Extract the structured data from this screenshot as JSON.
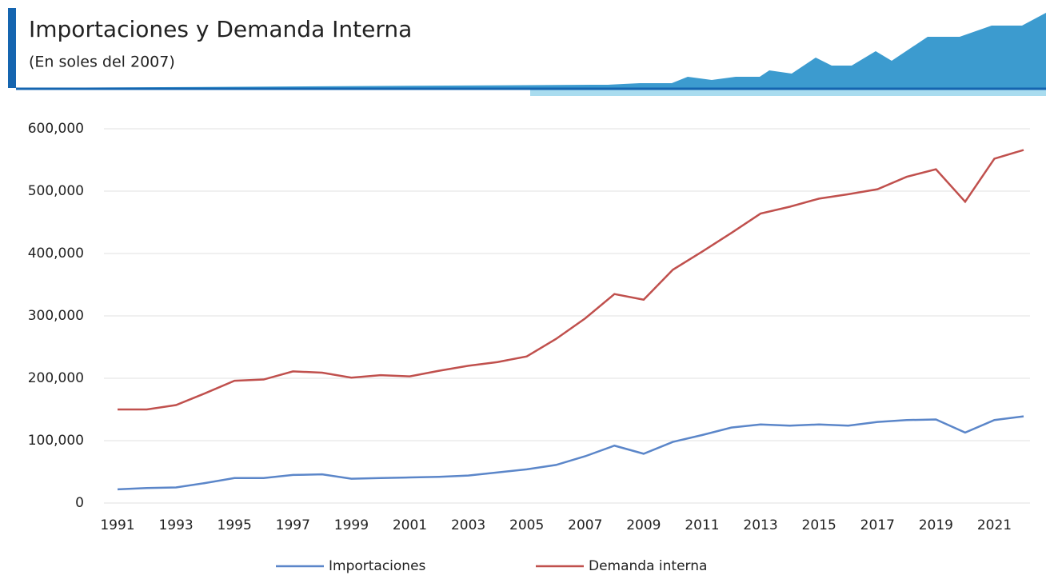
{
  "chart_data": {
    "type": "line",
    "title": "Importaciones y Demanda Interna",
    "subtitle": "(En soles del 2007)",
    "x": [
      1991,
      1992,
      1993,
      1994,
      1995,
      1996,
      1997,
      1998,
      1999,
      2000,
      2001,
      2002,
      2003,
      2004,
      2005,
      2006,
      2007,
      2008,
      2009,
      2010,
      2011,
      2012,
      2013,
      2014,
      2015,
      2016,
      2017,
      2018,
      2019,
      2020,
      2021,
      2022
    ],
    "xlim": [
      1991,
      2022
    ],
    "xticks": [
      1991,
      1993,
      1995,
      1997,
      1999,
      2001,
      2003,
      2005,
      2007,
      2009,
      2011,
      2013,
      2015,
      2017,
      2019,
      2021
    ],
    "ylim": [
      0,
      600000
    ],
    "yticks": [
      0,
      {
        "value": 100000,
        "label": "100,000"
      },
      {
        "value": 200000,
        "label": "200,000"
      },
      {
        "value": 300000,
        "label": "300,000"
      },
      {
        "value": 400000,
        "label": "400,000"
      },
      {
        "value": 500000,
        "label": "500,000"
      },
      {
        "value": 600000,
        "label": "600,000"
      }
    ],
    "grid": true,
    "legend": "bottom",
    "series": [
      {
        "name": "Importaciones",
        "color": "#5b86c9",
        "values": [
          22000,
          24000,
          25000,
          32000,
          40000,
          40000,
          45000,
          46000,
          39000,
          40000,
          41000,
          42000,
          44000,
          49000,
          54000,
          61000,
          75000,
          92000,
          79000,
          98000,
          109000,
          121000,
          126000,
          124000,
          126000,
          124000,
          130000,
          133000,
          134000,
          113000,
          133000,
          139000
        ]
      },
      {
        "name": "Demanda interna",
        "color": "#c0504d",
        "values": [
          150000,
          150000,
          157000,
          176000,
          196000,
          198000,
          211000,
          209000,
          201000,
          205000,
          203000,
          212000,
          220000,
          226000,
          235000,
          263000,
          296000,
          335000,
          326000,
          374000,
          403000,
          433000,
          464000,
          475000,
          488000,
          495000,
          503000,
          523000,
          535000,
          483000,
          552000,
          566000
        ]
      }
    ]
  }
}
